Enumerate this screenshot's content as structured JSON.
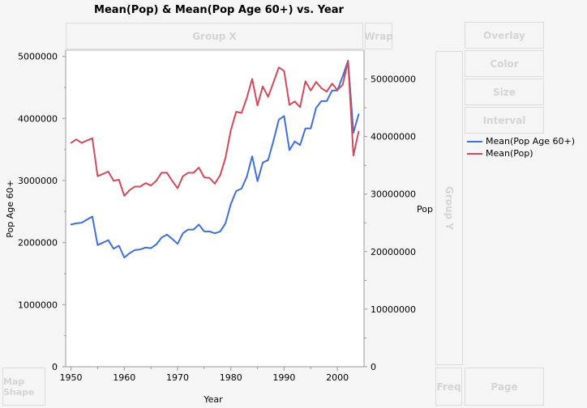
{
  "title": "Mean(Pop) & Mean(Pop Age 60+) vs. Year",
  "zones": {
    "group_x": "Group X",
    "wrap": "Wrap",
    "overlay": "Overlay",
    "color": "Color",
    "size": "Size",
    "interval": "Interval",
    "group_y": "Group Y",
    "map_shape": "Map Shape",
    "freq": "Freq",
    "page": "Page"
  },
  "chart_data": {
    "type": "line",
    "title": "Mean(Pop) & Mean(Pop Age 60+) vs. Year",
    "xlabel": "Year",
    "ylabel": "Pop Age 60+",
    "y2label": "Pop",
    "xlim": [
      1949,
      2005
    ],
    "xticks": [
      "1950",
      "1960",
      "1970",
      "1980",
      "1990",
      "2000"
    ],
    "ylim": [
      0,
      5100000
    ],
    "yticks": [
      "0",
      "1000000",
      "2000000",
      "3000000",
      "4000000",
      "5000000"
    ],
    "y2lim": [
      0,
      55000000
    ],
    "y2ticks": [
      "0",
      "10000000",
      "20000000",
      "30000000",
      "40000000",
      "50000000"
    ],
    "grid": false,
    "legend": "right",
    "x": [
      1950,
      1951,
      1952,
      1953,
      1954,
      1955,
      1956,
      1957,
      1958,
      1959,
      1960,
      1961,
      1962,
      1963,
      1964,
      1965,
      1966,
      1967,
      1968,
      1969,
      1970,
      1971,
      1972,
      1973,
      1974,
      1975,
      1976,
      1977,
      1978,
      1979,
      1980,
      1981,
      1982,
      1983,
      1984,
      1985,
      1986,
      1987,
      1988,
      1989,
      1990,
      1991,
      1992,
      1993,
      1994,
      1995,
      1996,
      1997,
      1998,
      1999,
      2000,
      2001,
      2002,
      2003,
      2004
    ],
    "series": [
      {
        "name": "Mean(Pop Age 60+)",
        "axis": "left",
        "color": "#3f6fd9",
        "values": [
          2290000,
          2310000,
          2320000,
          2370000,
          2420000,
          1960000,
          2000000,
          2040000,
          1900000,
          1950000,
          1760000,
          1830000,
          1880000,
          1890000,
          1920000,
          1910000,
          1970000,
          2080000,
          2130000,
          2060000,
          1980000,
          2150000,
          2210000,
          2210000,
          2290000,
          2180000,
          2180000,
          2150000,
          2180000,
          2310000,
          2620000,
          2830000,
          2870000,
          3060000,
          3390000,
          2990000,
          3290000,
          3330000,
          3640000,
          3980000,
          4040000,
          3490000,
          3630000,
          3570000,
          3840000,
          3840000,
          4170000,
          4280000,
          4280000,
          4450000,
          4450000,
          4680000,
          4930000,
          3770000,
          4070000
        ]
      },
      {
        "name": "Mean(Pop)",
        "axis": "right",
        "color": "#d24a5a",
        "values": [
          38900000,
          39500000,
          38900000,
          39300000,
          39700000,
          33100000,
          33500000,
          33900000,
          32300000,
          32500000,
          29700000,
          30700000,
          31300000,
          31300000,
          31900000,
          31500000,
          32300000,
          33700000,
          33700000,
          32300000,
          31000000,
          33100000,
          33700000,
          33700000,
          34600000,
          32900000,
          32800000,
          31800000,
          33300000,
          36300000,
          41100000,
          44300000,
          44100000,
          46700000,
          50000000,
          45400000,
          48700000,
          46900000,
          49400000,
          52000000,
          51400000,
          45500000,
          46100000,
          45100000,
          49600000,
          48000000,
          49500000,
          48400000,
          47800000,
          49200000,
          48100000,
          49000000,
          53100000,
          36700000,
          40900000
        ]
      }
    ]
  }
}
